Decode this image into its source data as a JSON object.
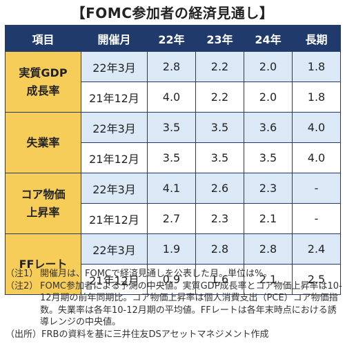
{
  "title": "【FOMC参加者の経済見通し】",
  "table": {
    "headers": [
      "項目",
      "開催月",
      "22年",
      "23年",
      "24年",
      "長期"
    ],
    "groups": [
      {
        "item_line1": "実質GDP",
        "item_line2": "成長率",
        "rows": [
          {
            "month": "22年3月",
            "v22": "2.8",
            "v23": "2.2",
            "v24": "2.0",
            "long": "1.8"
          },
          {
            "month": "21年12月",
            "v22": "4.0",
            "v23": "2.2",
            "v24": "2.0",
            "long": "1.8"
          }
        ]
      },
      {
        "item_line1": "失業率",
        "item_line2": "",
        "rows": [
          {
            "month": "22年3月",
            "v22": "3.5",
            "v23": "3.5",
            "v24": "3.6",
            "long": "4.0"
          },
          {
            "month": "21年12月",
            "v22": "3.5",
            "v23": "3.5",
            "v24": "3.5",
            "long": "4.0"
          }
        ]
      },
      {
        "item_line1": "コア物価",
        "item_line2": "上昇率",
        "rows": [
          {
            "month": "22年3月",
            "v22": "4.1",
            "v23": "2.6",
            "v24": "2.3",
            "long": "-"
          },
          {
            "month": "21年12月",
            "v22": "2.7",
            "v23": "2.3",
            "v24": "2.1",
            "long": "-"
          }
        ]
      },
      {
        "item_line1": "FFレート",
        "item_line2": "",
        "rows": [
          {
            "month": "22年3月",
            "v22": "1.9",
            "v23": "2.8",
            "v24": "2.8",
            "long": "2.4"
          },
          {
            "month": "21年12月",
            "v22": "0.9",
            "v23": "1.6",
            "v24": "2.1",
            "long": "2.5"
          }
        ]
      }
    ]
  },
  "notes": [
    {
      "tag": "（注1）",
      "text": "開催月は、FOMCで経済見通しを公表した月。単位は%。"
    },
    {
      "tag": "（注2）",
      "text": "FOMC参加者による予測の中央値。実質GDP成長率とコア物価上昇率は10-12月期の前年同期比。コア物価上昇率は個人消費支出（PCE）コア物価指数。失業率は各年10-12月期の平均値。FFレートは各年末時点における誘導レンジの中央値。"
    },
    {
      "tag": "（出所）",
      "text": "FRBの資料を基に三井住友DSアセットマネジメント作成"
    }
  ],
  "colors": {
    "header_bg": "#1f3a6b",
    "item_bg": "#f6cd58",
    "row_tint": "#dbe8f6"
  }
}
